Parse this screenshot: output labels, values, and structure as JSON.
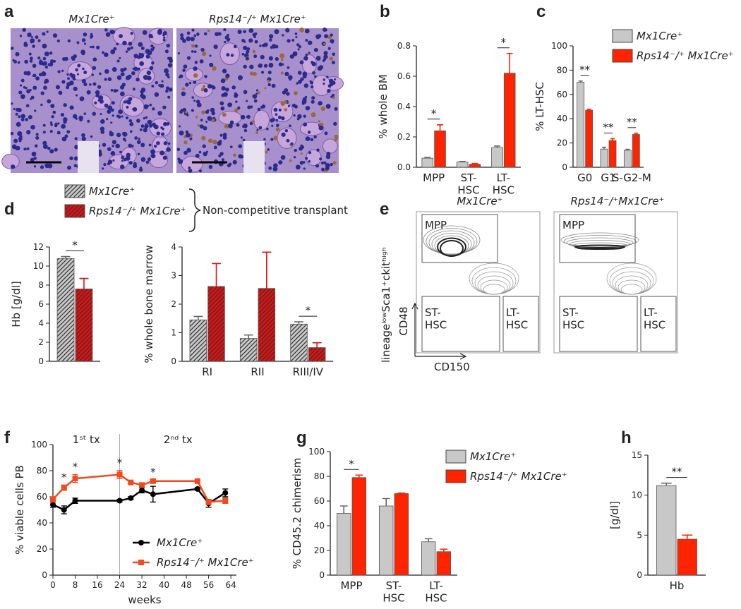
{
  "panel_labels": [
    "a",
    "b",
    "c",
    "d",
    "e",
    "f",
    "g",
    "h"
  ],
  "histology": {
    "titles": [
      "Mx1Cre⁺",
      "Rps14⁻/⁺ Mx1Cre⁺"
    ]
  },
  "flow": {
    "titles": [
      "Mx1Cre⁺",
      "Rps14⁻/⁺Mx1Cre⁺"
    ],
    "gates": [
      "MPP",
      "ST-\nHSC",
      "LT-\nHSC"
    ],
    "population": "lineageˡᵒʷSca1⁺ckitʰⁱᵍʰ",
    "x_label": "CD150",
    "y_label": "CD48"
  },
  "chart_data": [
    {
      "type": "bar",
      "ylabel": "% whole BM",
      "categories": [
        "MPP",
        "ST-\nHSC",
        "LT-\nHSC"
      ],
      "series": [
        {
          "color": "#c8c8c8",
          "values": [
            0.06,
            0.035,
            0.13
          ],
          "errors": [
            0.005,
            0.003,
            0.01
          ]
        },
        {
          "color": "#ff2400",
          "values": [
            0.24,
            0.02,
            0.62
          ],
          "errors": [
            0.04,
            0.005,
            0.13
          ]
        }
      ],
      "ylim": [
        0,
        0.8
      ],
      "yticks": [
        {
          "value": 0,
          "label": "0.0"
        },
        0.2,
        0.4,
        0.6,
        0.8
      ],
      "significance": [
        "*",
        null,
        "*"
      ]
    },
    {
      "type": "bar",
      "ylabel": "% LT-HSC",
      "categories": [
        "G0",
        "G1",
        "S-G2-M"
      ],
      "series": [
        {
          "name": "Mx1Cre⁺",
          "color": "#c8c8c8",
          "values": [
            70,
            15,
            14
          ],
          "errors": [
            1,
            1.5,
            0.8
          ]
        },
        {
          "name": "Rps14⁻/⁺ Mx1Cre⁺",
          "color": "#ff2400",
          "values": [
            47,
            22,
            27
          ],
          "errors": [
            0.8,
            1.5,
            1
          ]
        }
      ],
      "ylim": [
        0,
        100
      ],
      "yticks": [
        0,
        20,
        40,
        60,
        80,
        100
      ],
      "significance": [
        "**",
        "**",
        "**"
      ]
    },
    {
      "type": "bar",
      "ylabel": "Hb [g/dl]",
      "categories": [
        null
      ],
      "pattern": "hatch",
      "legend_note": "Non-competitive transplant",
      "series": [
        {
          "name": "Mx1Cre⁺",
          "color": "#c8c8c8",
          "values": [
            10.8
          ],
          "errors": [
            0.2
          ]
        },
        {
          "name": "Rps14⁻/⁺ Mx1Cre⁺",
          "color": "#e01010",
          "values": [
            7.6
          ],
          "errors": [
            1.1
          ]
        }
      ],
      "ylim": [
        0,
        12
      ],
      "yticks": [
        0,
        2,
        4,
        6,
        8,
        10,
        12
      ],
      "significance": [
        "*"
      ]
    },
    {
      "type": "bar",
      "ylabel": "% whole bone marrow",
      "categories": [
        "RI",
        "RII",
        "RIII/IV"
      ],
      "pattern": "hatch",
      "series": [
        {
          "color": "#c8c8c8",
          "values": [
            1.45,
            0.8,
            1.3
          ],
          "errors": [
            0.12,
            0.12,
            0.08
          ]
        },
        {
          "color": "#e01010",
          "values": [
            2.62,
            2.55,
            0.48
          ],
          "errors": [
            0.8,
            1.27,
            0.17
          ]
        }
      ],
      "ylim": [
        0,
        4
      ],
      "yticks": [
        0,
        1,
        2,
        3,
        4
      ],
      "significance": [
        null,
        null,
        "*"
      ]
    },
    {
      "type": "line",
      "xlabel": "weeks",
      "ylabel": "% viable cells PB",
      "phases": [
        "1ˢᵗ tx",
        "2ⁿᵈ tx"
      ],
      "phase_break": 24,
      "x": [
        0,
        4,
        8,
        24,
        28,
        32,
        36,
        52,
        56,
        62
      ],
      "series": [
        {
          "name": "Mx1Cre⁺",
          "color": "#000000",
          "marker": "circle",
          "values": [
            54,
            50,
            57,
            57,
            59,
            65,
            62,
            66,
            55,
            63
          ],
          "errors": [
            2,
            3,
            2,
            1,
            1,
            2,
            6,
            1,
            3,
            3
          ]
        },
        {
          "name": "Rps14⁻/⁺ Mx1Cre⁺",
          "color": "#f04a1e",
          "marker": "square",
          "values": [
            58,
            67,
            74,
            77,
            71,
            69,
            72,
            72,
            56,
            57
          ],
          "errors": [
            2,
            2,
            3,
            3,
            1,
            1,
            1,
            1,
            2,
            2
          ]
        }
      ],
      "xlim": [
        0,
        66
      ],
      "xticks": [
        0,
        8,
        16,
        24,
        32,
        40,
        48,
        56,
        64
      ],
      "ylim": [
        0,
        100
      ],
      "yticks": [
        0,
        20,
        40,
        60,
        80,
        100
      ],
      "significance": [
        null,
        "*",
        "*",
        "*",
        null,
        null,
        "*",
        null,
        null,
        null
      ]
    },
    {
      "type": "bar",
      "ylabel": "% CD45.2 chimerism",
      "categories": [
        "MPP",
        "ST-\nHSC",
        "LT-\nHSC"
      ],
      "series": [
        {
          "name": "Mx1Cre⁺",
          "color": "#c8c8c8",
          "values": [
            50,
            56,
            27
          ],
          "errors": [
            6,
            6,
            2.5
          ]
        },
        {
          "name": "Rps14⁻/⁺ Mx1Cre⁺",
          "color": "#ff2400",
          "values": [
            79,
            66,
            19
          ],
          "errors": [
            2,
            0.5,
            2
          ]
        }
      ],
      "ylim": [
        0,
        100
      ],
      "yticks": [
        0,
        20,
        40,
        60,
        80,
        100
      ],
      "significance": [
        "*",
        null,
        null
      ]
    },
    {
      "type": "bar",
      "ylabel": "[g/dl]",
      "categories": [
        "Hb"
      ],
      "series": [
        {
          "color": "#c8c8c8",
          "values": [
            11.2
          ],
          "errors": [
            0.3
          ]
        },
        {
          "color": "#ff2400",
          "values": [
            4.5
          ],
          "errors": [
            0.5
          ]
        }
      ],
      "ylim": [
        0,
        15
      ],
      "yticks": [
        0,
        5,
        10,
        15
      ],
      "significance": [
        "**"
      ]
    }
  ]
}
